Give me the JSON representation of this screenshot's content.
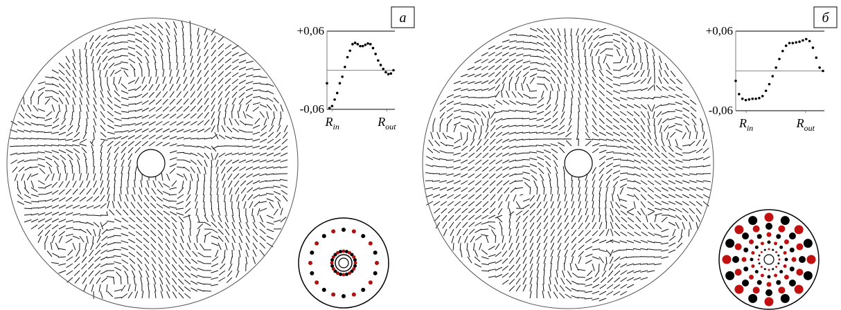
{
  "panels": [
    {
      "label": "а",
      "plot": {
        "type": "scatter",
        "ylim": [
          -0.06,
          0.06
        ],
        "yticks": [
          {
            "value": 0.06,
            "label": "+0,06"
          },
          {
            "value": -0.06,
            "label": "-0,06"
          }
        ],
        "xlim": [
          0,
          1
        ],
        "xticks": [
          {
            "value": 0.08,
            "symbol": "R",
            "subscript": "in"
          },
          {
            "value": 0.9,
            "symbol": "R",
            "subscript": "out"
          }
        ],
        "color": "#000000",
        "values": [
          -0.02,
          -0.058,
          -0.055,
          -0.045,
          -0.035,
          -0.02,
          -0.01,
          0.005,
          0.02,
          0.03,
          0.04,
          0.042,
          0.04,
          0.037,
          0.037,
          0.039,
          0.041,
          0.04,
          0.034,
          0.025,
          0.015,
          0.008,
          0.002,
          -0.003,
          -0.006,
          -0.005,
          0.0
        ]
      }
    },
    {
      "label": "б",
      "plot": {
        "type": "scatter",
        "ylim": [
          -0.06,
          0.06
        ],
        "yticks": [
          {
            "value": 0.06,
            "label": "+0,06"
          },
          {
            "value": -0.06,
            "label": "-0,06"
          }
        ],
        "xlim": [
          0,
          1
        ],
        "xticks": [
          {
            "value": 0.12,
            "symbol": "R",
            "subscript": "in"
          },
          {
            "value": 0.8,
            "symbol": "R",
            "subscript": "out"
          }
        ],
        "color": "#000000",
        "values": [
          -0.015,
          -0.035,
          -0.042,
          -0.044,
          -0.043,
          -0.042,
          -0.042,
          -0.041,
          -0.038,
          -0.03,
          -0.02,
          -0.008,
          0.005,
          0.018,
          0.03,
          0.038,
          0.042,
          0.042,
          0.043,
          0.044,
          0.046,
          0.048,
          0.045,
          0.035,
          0.02,
          0.005,
          0.0
        ]
      }
    }
  ]
}
